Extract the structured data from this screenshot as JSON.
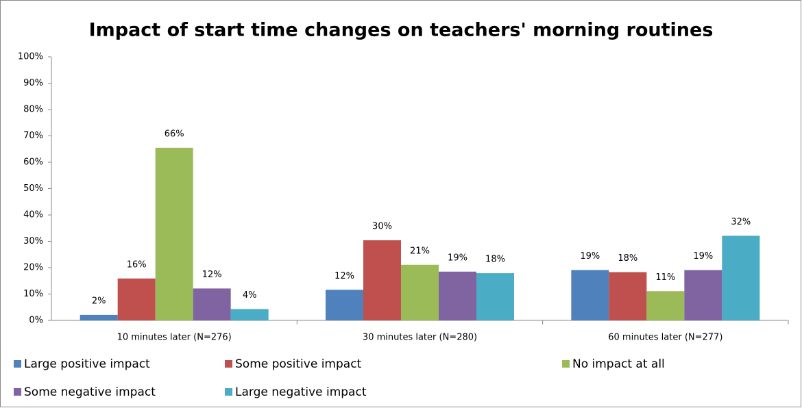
{
  "chart_data": {
    "type": "bar",
    "title": "Impact of start time changes on teachers' morning routines",
    "categories": [
      "10 minutes later (N=276)",
      "30 minutes later (N=280)",
      "60 minutes later (N=277)"
    ],
    "series": [
      {
        "name": "Large positive impact",
        "color": "#4f81bd",
        "values": [
          2.1,
          11.6,
          19.1
        ],
        "value_labels": [
          "2%",
          "12%",
          "19%"
        ]
      },
      {
        "name": "Some positive impact",
        "color": "#c0504d",
        "values": [
          15.9,
          30.4,
          18.3
        ],
        "value_labels": [
          "16%",
          "30%",
          "18%"
        ]
      },
      {
        "name": "No impact at all",
        "color": "#9bbb59",
        "values": [
          65.5,
          21.1,
          11.1
        ],
        "value_labels": [
          "66%",
          "21%",
          "11%"
        ]
      },
      {
        "name": "Some negative impact",
        "color": "#8064a2",
        "values": [
          12.1,
          18.5,
          19.1
        ],
        "value_labels": [
          "12%",
          "19%",
          "19%"
        ]
      },
      {
        "name": "Large negative impact",
        "color": "#4bacc6",
        "values": [
          4.3,
          17.9,
          32.1
        ],
        "value_labels": [
          "4%",
          "18%",
          "32%"
        ]
      }
    ],
    "ylim": [
      0,
      100
    ],
    "yticks": [
      {
        "value": 0,
        "label": "0%"
      },
      {
        "value": 10,
        "label": "10%"
      },
      {
        "value": 20,
        "label": "20%"
      },
      {
        "value": 30,
        "label": "30%"
      },
      {
        "value": 40,
        "label": "40%"
      },
      {
        "value": 50,
        "label": "50%"
      },
      {
        "value": 60,
        "label": "60%"
      },
      {
        "value": 70,
        "label": "70%"
      },
      {
        "value": 80,
        "label": "80%"
      },
      {
        "value": 90,
        "label": "90%"
      },
      {
        "value": 100,
        "label": "100%"
      }
    ],
    "legend": "bottom"
  }
}
